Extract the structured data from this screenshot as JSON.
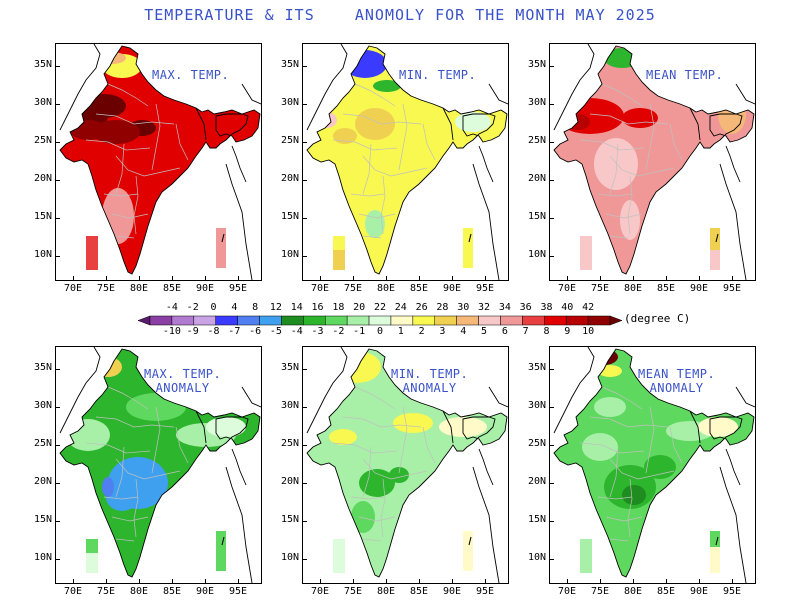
{
  "title": "TEMPERATURE & ITS    ANOMOLY FOR THE MONTH MAY 2025",
  "axis": {
    "lat_labels": [
      "35N",
      "30N",
      "25N",
      "20N",
      "15N",
      "10N"
    ],
    "lon_labels": [
      "70E",
      "75E",
      "80E",
      "85E",
      "90E",
      "95E"
    ]
  },
  "panels": [
    {
      "name": "max-temp",
      "label": "MAX. TEMP.",
      "palette": "abs_max"
    },
    {
      "name": "min-temp",
      "label": "MIN. TEMP.",
      "palette": "abs_min"
    },
    {
      "name": "mean-temp",
      "label": "MEAN TEMP.",
      "palette": "abs_mean"
    },
    {
      "name": "max-temp-anomaly",
      "label": "MAX. TEMP.\nANOMALY",
      "palette": "anom_max"
    },
    {
      "name": "min-temp-anomaly",
      "label": "MIN. TEMP.\nANOMALY",
      "palette": "anom_min"
    },
    {
      "name": "mean-temp-anomaly",
      "label": "MEAN TEMP.\nANOMALY",
      "palette": "anom_mean"
    }
  ],
  "colorbar": {
    "top_labels": [
      "-4",
      "-2",
      "0",
      "4",
      "8",
      "12",
      "14",
      "16",
      "18",
      "20",
      "22",
      "24",
      "26",
      "28",
      "30",
      "32",
      "34",
      "36",
      "38",
      "40",
      "42"
    ],
    "bottom_labels": [
      "-10",
      "-9",
      "-8",
      "-7",
      "-6",
      "-5",
      "-4",
      "-3",
      "-2",
      "-1",
      "0",
      "1",
      "2",
      "3",
      "4",
      "5",
      "6",
      "7",
      "8",
      "9",
      "10"
    ],
    "colors": [
      "#5a1a6e",
      "#8b3fa5",
      "#b07ad0",
      "#c8a3e6",
      "#3b3bff",
      "#4f7ff0",
      "#3fa0f0",
      "#1e8c1e",
      "#2db52d",
      "#5fd85f",
      "#a8f0a8",
      "#dcfcdc",
      "#fffac8",
      "#f8f850",
      "#f0d050",
      "#f5b878",
      "#f8c8c8",
      "#f09898",
      "#e84040",
      "#e00000",
      "#b80000",
      "#900000",
      "#6b0000"
    ],
    "unit": "(degree C)"
  }
}
